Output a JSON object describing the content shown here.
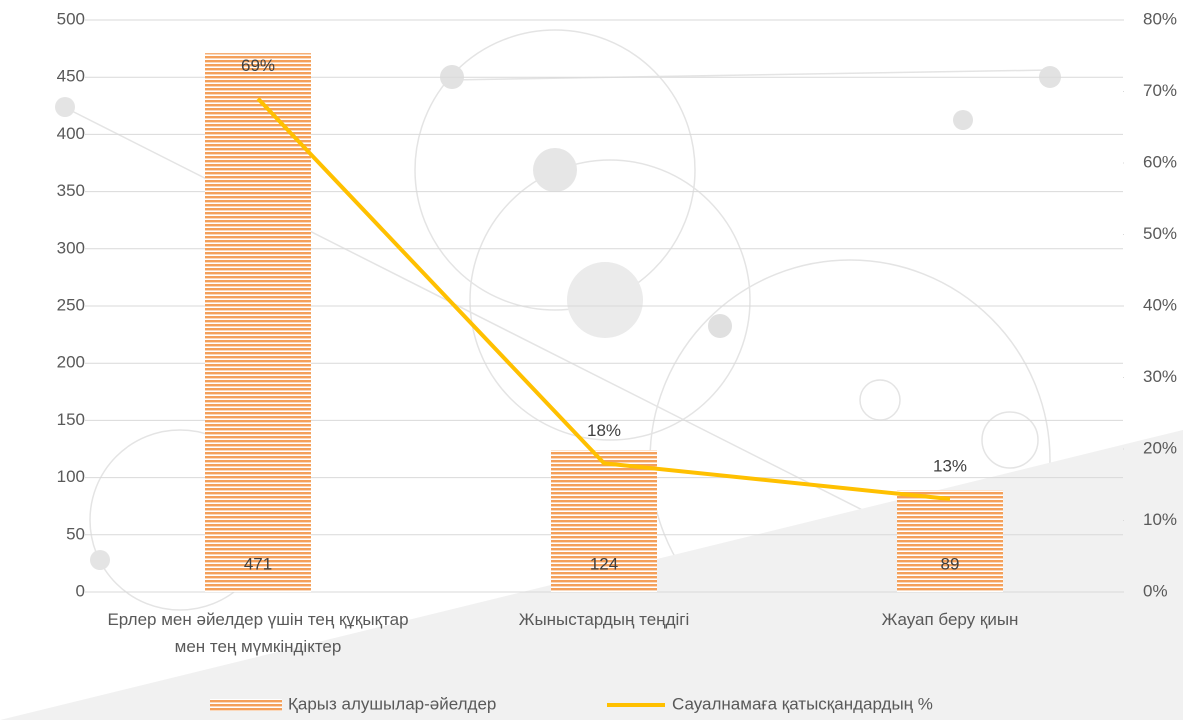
{
  "chart_data": {
    "type": "bar",
    "categories": [
      "Ерлер мен әйелдер үшін тең құқықтар мен тең мүмкіндіктер",
      "Жыныстардың теңдігі",
      "Жауап беру қиын"
    ],
    "series": [
      {
        "name": "Қарыз алушылар-әйелдер",
        "type": "bar",
        "color": "#f4a05a",
        "values": [
          471,
          124,
          89
        ]
      },
      {
        "name": "Сауалнамаға қатысқандардың %",
        "type": "line",
        "axis": "y2",
        "color": "#ffc000",
        "values": [
          69,
          18,
          13
        ],
        "value_labels": [
          "69%",
          "18%",
          "13%"
        ]
      }
    ],
    "ylim": [
      0,
      500
    ],
    "yticks": [
      0,
      50,
      100,
      150,
      200,
      250,
      300,
      350,
      400,
      450,
      500
    ],
    "y2lim": [
      0,
      80
    ],
    "y2ticks": [
      {
        "value": 0,
        "label": "0%"
      },
      {
        "value": 10,
        "label": "10%"
      },
      {
        "value": 20,
        "label": "20%"
      },
      {
        "value": 30,
        "label": "30%"
      },
      {
        "value": 40,
        "label": "40%"
      },
      {
        "value": 50,
        "label": "50%"
      },
      {
        "value": 60,
        "label": "60%"
      },
      {
        "value": 70,
        "label": "70%"
      },
      {
        "value": 80,
        "label": "80%"
      }
    ],
    "grid": true,
    "legend": "bottom"
  }
}
